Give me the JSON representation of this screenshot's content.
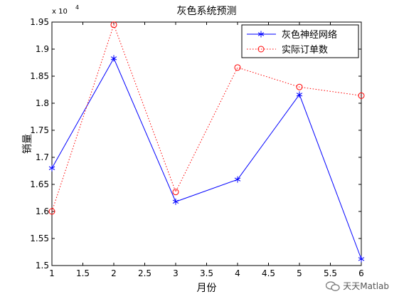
{
  "chart_data": {
    "type": "line",
    "title": "灰色系统预测",
    "xlabel": "月份",
    "ylabel": "销量",
    "y_exponent": "x 10",
    "y_exponent_power": "4",
    "xlim": [
      1,
      6
    ],
    "ylim": [
      1.5,
      1.95
    ],
    "x_ticks": [
      "1",
      "1.5",
      "2",
      "2.5",
      "3",
      "3.5",
      "4",
      "4.5",
      "5",
      "5.5",
      "6"
    ],
    "y_ticks": [
      "1.5",
      "1.55",
      "1.6",
      "1.65",
      "1.7",
      "1.75",
      "1.8",
      "1.85",
      "1.9",
      "1.95"
    ],
    "x": [
      1,
      2,
      3,
      4,
      5,
      6
    ],
    "series": [
      {
        "name": "灰色神经网络",
        "values": [
          1.68,
          1.883,
          1.618,
          1.659,
          1.816,
          1.512
        ],
        "color": "#0000ff",
        "line_style": "solid",
        "marker": "asterisk"
      },
      {
        "name": "实际订单数",
        "values": [
          1.6,
          1.945,
          1.636,
          1.866,
          1.83,
          1.814
        ],
        "color": "#ff0000",
        "line_style": "dotted",
        "marker": "circle"
      }
    ],
    "legend_position": "top-right",
    "grid": false,
    "box": true
  },
  "watermark": {
    "text": "天天Matlab"
  }
}
